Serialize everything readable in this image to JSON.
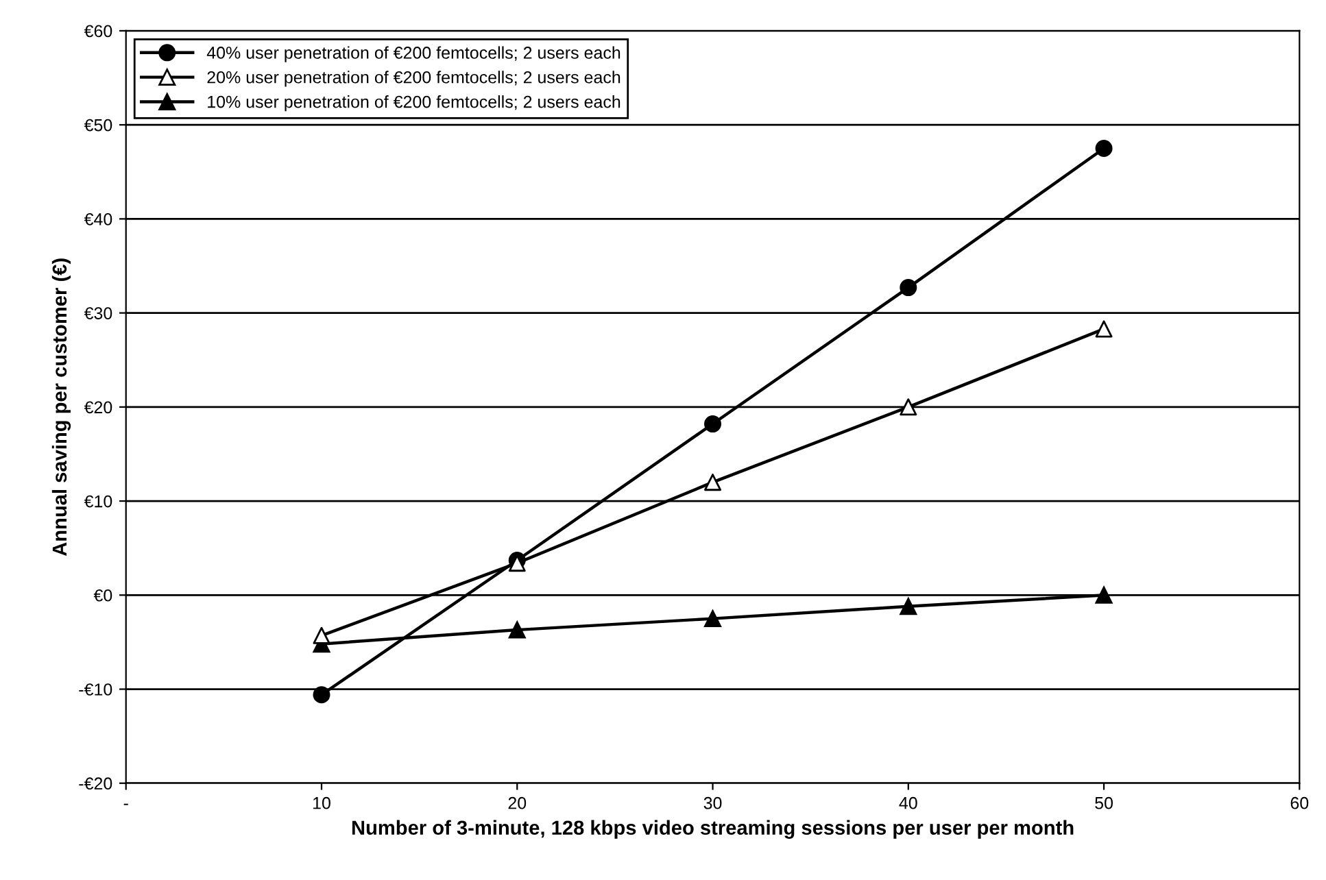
{
  "chart_data": {
    "type": "line",
    "xlabel": "Number of 3-minute, 128 kbps video streaming sessions per user per month",
    "ylabel": "Annual saving per customer (€)",
    "x": [
      10,
      20,
      30,
      40,
      50
    ],
    "series": [
      {
        "name": "40% user penetration of €200 femtocells; 2 users each",
        "color": "#000000",
        "marker": "circle",
        "values": [
          -10.6,
          3.7,
          18.2,
          32.7,
          47.5
        ]
      },
      {
        "name": "20% user penetration of €200 femtocells; 2 users each",
        "color": "#000000",
        "marker": "triangle",
        "colors": [
          "#ffffff",
          "#ffffff",
          "#ffffff",
          "#ffffff",
          "#ffffff"
        ],
        "values": [
          -4.3,
          3.4,
          12.0,
          20.0,
          28.3
        ]
      },
      {
        "name": "10% user penetration of €200 femtocells; 2 users each",
        "color": "#000000",
        "marker": "triangle",
        "values": [
          -5.2,
          -3.7,
          -2.5,
          -1.2,
          0.0
        ]
      }
    ],
    "xlim": [
      0,
      60
    ],
    "xticks": [
      {
        "value": 0,
        "label": "-"
      },
      10,
      20,
      30,
      40,
      50,
      60
    ],
    "ylim": [
      -20,
      60
    ],
    "yticks": [
      {
        "value": -20,
        "label": "-€20"
      },
      {
        "value": -10,
        "label": "-€10"
      },
      {
        "value": 0,
        "label": "€0"
      },
      {
        "value": 10,
        "label": "€10"
      },
      {
        "value": 20,
        "label": "€20"
      },
      {
        "value": 30,
        "label": "€30"
      },
      {
        "value": 40,
        "label": "€40"
      },
      {
        "value": 50,
        "label": "€50"
      },
      {
        "value": 60,
        "label": "€60"
      }
    ],
    "grid": "y",
    "legend": "top left",
    "line_style": "solid"
  }
}
